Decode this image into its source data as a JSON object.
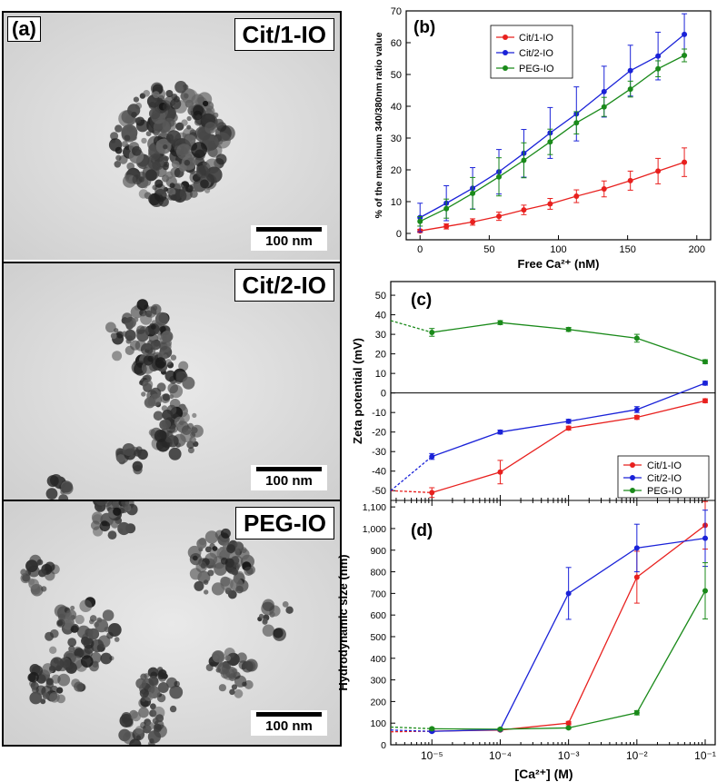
{
  "panel_a": {
    "letter": "(a)",
    "images": [
      {
        "label": "Cit/1-IO",
        "scale": "100 nm"
      },
      {
        "label": "Cit/2-IO",
        "scale": "100 nm"
      },
      {
        "label": "PEG-IO",
        "scale": "100 nm"
      }
    ]
  },
  "chart_data": [
    {
      "panel": "(b)",
      "type": "line",
      "xlabel": "Free Ca²⁺ (nM)",
      "ylabel": "% of the maximum 340/380nm ratio value",
      "xlim": [
        -10,
        210
      ],
      "ylim": [
        -2,
        70
      ],
      "x_ticks": [
        0,
        50,
        100,
        150,
        200
      ],
      "y_ticks": [
        0,
        10,
        20,
        30,
        40,
        50,
        60,
        70
      ],
      "legend_position": "top-left",
      "x": [
        0,
        19,
        38,
        57,
        75,
        94,
        113,
        133,
        152,
        172,
        191
      ],
      "series": [
        {
          "name": "Cit/1-IO",
          "color": "#e8201e",
          "values": [
            0.8,
            2.2,
            3.6,
            5.4,
            7.4,
            9.3,
            11.7,
            14.0,
            16.6,
            19.6,
            22.4
          ],
          "error": [
            0.5,
            0.8,
            1.0,
            1.3,
            1.5,
            1.7,
            2.0,
            2.5,
            3.0,
            4.0,
            4.5
          ]
        },
        {
          "name": "Cit/2-IO",
          "color": "#1a22d8",
          "values": [
            5.0,
            9.5,
            14.2,
            19.4,
            25.2,
            31.6,
            37.6,
            44.6,
            51.2,
            55.8,
            62.6
          ],
          "error": [
            4.5,
            5.5,
            6.5,
            7.0,
            7.5,
            8.0,
            8.5,
            8.0,
            8.0,
            7.5,
            6.5
          ]
        },
        {
          "name": "PEG-IO",
          "color": "#1a8a1a",
          "values": [
            3.8,
            7.8,
            12.6,
            17.8,
            23.0,
            28.8,
            34.8,
            39.8,
            45.4,
            51.8,
            56.0
          ],
          "error": [
            1.5,
            3.0,
            5.0,
            6.0,
            5.5,
            4.0,
            3.5,
            3.0,
            2.5,
            2.5,
            2.0
          ]
        }
      ]
    },
    {
      "panel": "(c)",
      "type": "line",
      "xscale": "log",
      "ylabel": "Zeta potential (mV)",
      "ylim": [
        -55,
        57
      ],
      "y_ticks": [
        -50,
        -40,
        -30,
        -20,
        -10,
        0,
        10,
        20,
        30,
        40,
        50
      ],
      "legend_position": "bottom-right",
      "x": [
        1e-05,
        0.0001,
        0.001,
        0.01,
        0.1
      ],
      "series": [
        {
          "name": "Cit/1-IO",
          "color": "#e8201e",
          "values": [
            -51,
            -40.5,
            -18,
            -12.5,
            -4
          ],
          "error": [
            2.5,
            6,
            1,
            1,
            1
          ],
          "start_value": -50
        },
        {
          "name": "Cit/2-IO",
          "color": "#1a22d8",
          "values": [
            -32.5,
            -20,
            -14.5,
            -8.5,
            5
          ],
          "error": [
            1.5,
            1,
            1,
            1.5,
            1
          ],
          "start_value": -50
        },
        {
          "name": "PEG-IO",
          "color": "#1a8a1a",
          "values": [
            31,
            36,
            32.5,
            28,
            16
          ],
          "error": [
            2,
            1,
            1,
            2,
            1
          ],
          "start_value": 37
        }
      ]
    },
    {
      "panel": "(d)",
      "type": "line",
      "xscale": "log",
      "xlabel": "[Ca²⁺] (M)",
      "ylabel": "Hydrodynamic size (nm)",
      "xlim": [
        2.5e-06,
        0.14
      ],
      "ylim": [
        0,
        1130
      ],
      "x_tick_labels": [
        "10⁻⁵",
        "10⁻⁴",
        "10⁻³",
        "10⁻²",
        "10⁻¹"
      ],
      "y_tick_labels": [
        "0",
        "100",
        "200",
        "300",
        "400",
        "500",
        "600",
        "700",
        "800",
        "900",
        "1,000",
        "1,100"
      ],
      "x": [
        1e-05,
        0.0001,
        0.001,
        0.01,
        0.1
      ],
      "series": [
        {
          "name": "Cit/1-IO",
          "color": "#e8201e",
          "values": [
            63,
            68,
            100,
            775,
            1015
          ],
          "error": [
            5,
            5,
            8,
            120,
            110
          ],
          "start_value": 60
        },
        {
          "name": "Cit/2-IO",
          "color": "#1a22d8",
          "values": [
            62,
            70,
            700,
            910,
            955
          ],
          "error": [
            5,
            5,
            120,
            110,
            130
          ],
          "start_value": 68
        },
        {
          "name": "PEG-IO",
          "color": "#1a8a1a",
          "values": [
            74,
            72,
            78,
            148,
            712
          ],
          "error": [
            5,
            5,
            5,
            10,
            130
          ],
          "start_value": 82
        }
      ]
    }
  ]
}
